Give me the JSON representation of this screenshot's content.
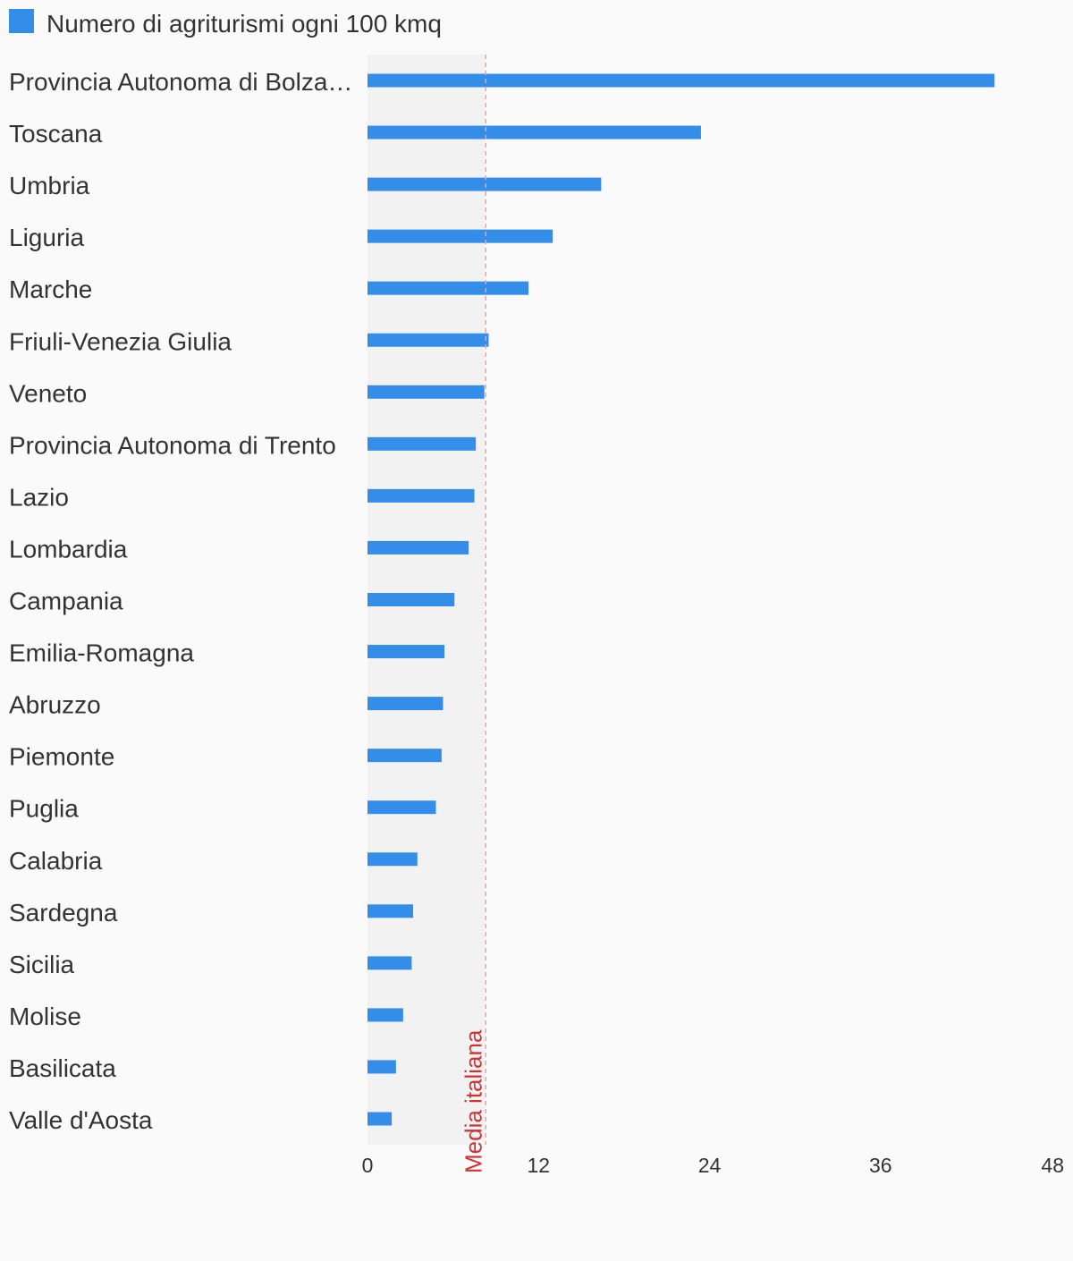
{
  "chart_data": {
    "type": "bar",
    "orientation": "horizontal",
    "legend": {
      "position": "top-left",
      "entries": [
        {
          "name": "Numero di agriturismi ogni 100 kmq",
          "color": "#348de8"
        }
      ]
    },
    "series": [
      {
        "name": "Numero di agriturismi ogni 100 kmq",
        "color": "#348de8",
        "values": [
          44.0,
          23.4,
          16.4,
          13.0,
          11.3,
          8.5,
          8.2,
          7.6,
          7.5,
          7.1,
          6.1,
          5.4,
          5.3,
          5.2,
          4.8,
          3.5,
          3.2,
          3.1,
          2.5,
          2.0,
          1.7
        ]
      }
    ],
    "categories": [
      "Provincia Autonoma di Bolza…",
      "Toscana",
      "Umbria",
      "Liguria",
      "Marche",
      "Friuli-Venezia Giulia",
      "Veneto",
      "Provincia Autonoma di Trento",
      "Lazio",
      "Lombardia",
      "Campania",
      "Emilia-Romagna",
      "Abruzzo",
      "Piemonte",
      "Puglia",
      "Calabria",
      "Sardegna",
      "Sicilia",
      "Molise",
      "Basilicata",
      "Valle d'Aosta"
    ],
    "xaxis": {
      "range": [
        0,
        48
      ],
      "ticks": [
        0,
        12,
        24,
        36,
        48
      ],
      "tick_labels": [
        "0",
        "12",
        "24",
        "36",
        "48"
      ]
    },
    "grid": false,
    "reference": {
      "label": "Media italiana",
      "value": 8.3,
      "color": "#cc3333",
      "shade_color": "#f2f2f2"
    }
  }
}
